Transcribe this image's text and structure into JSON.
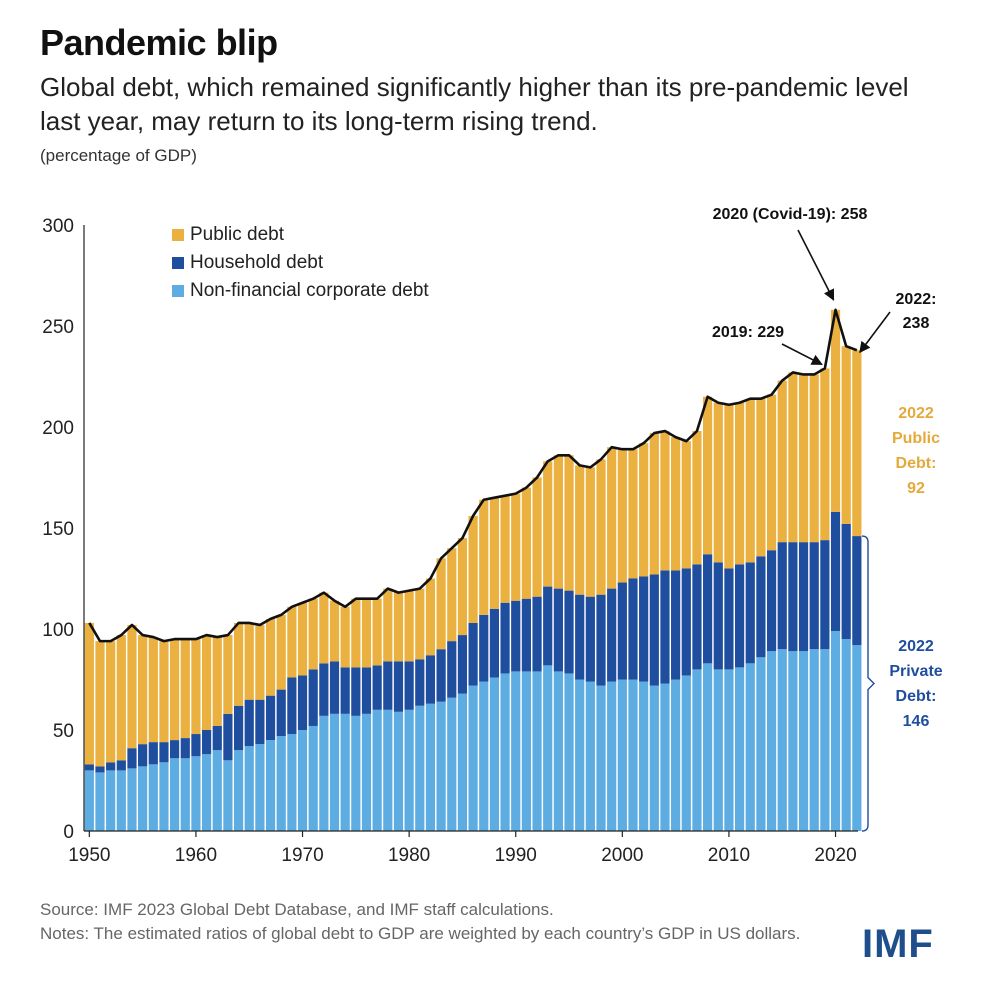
{
  "title": "Pandemic blip",
  "subtitle": "Global debt, which remained significantly higher than its pre-pandemic level last year, may return to its long-term rising trend.",
  "unit": "(percentage of GDP)",
  "source": "Source: IMF 2023 Global Debt Database, and IMF staff calculations.",
  "notes": "Notes: The estimated ratios of global debt to GDP are weighted by each country’s GDP in US dollars.",
  "logo": "IMF",
  "colors": {
    "public": "#EAB040",
    "household": "#1F4E9E",
    "corporate": "#5DADE2",
    "total_line": "#111111",
    "private_label": "#1F4E9E",
    "public_label": "#E5A93B"
  },
  "chart_data": {
    "type": "bar",
    "stacked": true,
    "title": "Pandemic blip",
    "ylabel": "",
    "xlabel": "",
    "ylim": [
      0,
      300
    ],
    "yticks": [
      0,
      50,
      100,
      150,
      200,
      250,
      300
    ],
    "xticks": [
      1950,
      1960,
      1970,
      1980,
      1990,
      2000,
      2010,
      2020
    ],
    "legend_position": "top-left",
    "x": [
      1950,
      1951,
      1952,
      1953,
      1954,
      1955,
      1956,
      1957,
      1958,
      1959,
      1960,
      1961,
      1962,
      1963,
      1964,
      1965,
      1966,
      1967,
      1968,
      1969,
      1970,
      1971,
      1972,
      1973,
      1974,
      1975,
      1976,
      1977,
      1978,
      1979,
      1980,
      1981,
      1982,
      1983,
      1984,
      1985,
      1986,
      1987,
      1988,
      1989,
      1990,
      1991,
      1992,
      1993,
      1994,
      1995,
      1996,
      1997,
      1998,
      1999,
      2000,
      2001,
      2002,
      2003,
      2004,
      2005,
      2006,
      2007,
      2008,
      2009,
      2010,
      2011,
      2012,
      2013,
      2014,
      2015,
      2016,
      2017,
      2018,
      2019,
      2020,
      2021,
      2022
    ],
    "series": [
      {
        "name": "Non-financial corporate debt",
        "key": "corporate",
        "values": [
          30,
          29,
          30,
          30,
          31,
          32,
          33,
          34,
          36,
          36,
          37,
          38,
          40,
          35,
          40,
          42,
          43,
          45,
          47,
          48,
          50,
          52,
          57,
          58,
          58,
          57,
          58,
          60,
          60,
          59,
          60,
          62,
          63,
          64,
          66,
          68,
          72,
          74,
          76,
          78,
          79,
          79,
          79,
          82,
          79,
          78,
          75,
          74,
          72,
          74,
          75,
          75,
          74,
          72,
          73,
          75,
          77,
          80,
          83,
          80,
          80,
          81,
          83,
          86,
          89,
          90,
          89,
          89,
          90,
          90,
          99,
          95,
          92
        ]
      },
      {
        "name": "Household debt",
        "key": "household",
        "values": [
          3,
          3,
          4,
          5,
          10,
          11,
          11,
          10,
          9,
          10,
          11,
          12,
          12,
          23,
          22,
          23,
          22,
          22,
          23,
          28,
          27,
          28,
          26,
          26,
          23,
          24,
          23,
          22,
          24,
          25,
          24,
          23,
          24,
          26,
          28,
          29,
          31,
          33,
          34,
          35,
          35,
          36,
          37,
          39,
          41,
          41,
          42,
          42,
          45,
          46,
          48,
          50,
          52,
          55,
          56,
          54,
          53,
          52,
          54,
          53,
          50,
          51,
          50,
          50,
          50,
          53,
          54,
          54,
          53,
          54,
          59,
          57,
          54
        ]
      },
      {
        "name": "Public debt",
        "key": "public",
        "values": [
          70,
          62,
          60,
          62,
          61,
          54,
          52,
          50,
          50,
          49,
          47,
          47,
          44,
          39,
          41,
          38,
          37,
          38,
          37,
          35,
          36,
          35,
          35,
          30,
          30,
          34,
          34,
          33,
          36,
          34,
          35,
          35,
          38,
          45,
          46,
          48,
          53,
          57,
          55,
          53,
          53,
          55,
          59,
          62,
          66,
          67,
          64,
          64,
          67,
          70,
          66,
          64,
          66,
          70,
          69,
          66,
          63,
          66,
          78,
          79,
          81,
          80,
          81,
          78,
          77,
          80,
          84,
          83,
          83,
          85,
          100,
          88,
          92
        ]
      }
    ],
    "annotations": [
      {
        "text": "2020 (Covid-19): 258",
        "x": 2020,
        "y": 258
      },
      {
        "text": "2019: 229",
        "x": 2019,
        "y": 229
      },
      {
        "text_lines": [
          "2022:",
          "238"
        ],
        "x": 2022,
        "y": 238
      }
    ],
    "side_labels": {
      "public_lines": [
        "2022",
        "Public",
        "Debt:",
        "92"
      ],
      "private_lines": [
        "2022",
        "Private",
        "Debt:",
        "146"
      ]
    }
  }
}
